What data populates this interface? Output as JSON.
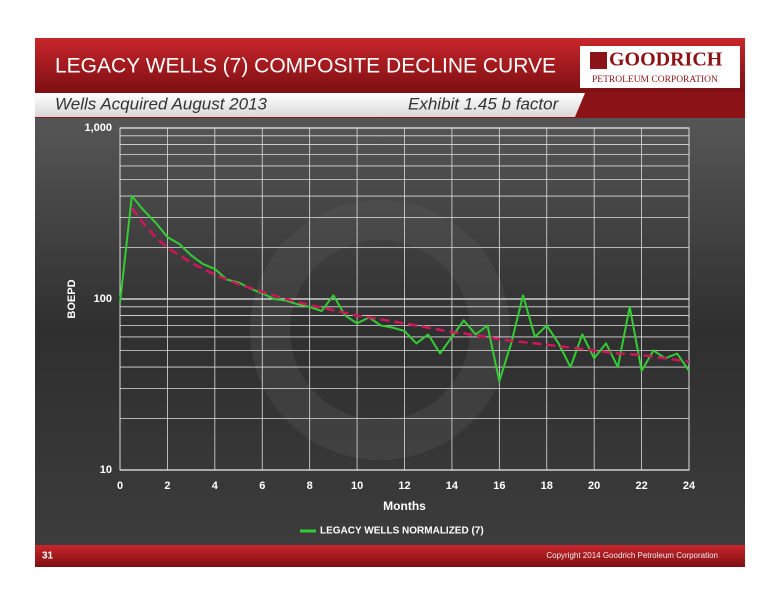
{
  "slide": {
    "title": "LEGACY WELLS (7) COMPOSITE DECLINE CURVE",
    "logo_name": "GOODRICH",
    "logo_sub": "PETROLEUM CORPORATION",
    "subtitle_left": "Wells Acquired August 2013",
    "subtitle_right": "Exhibit 1.45 b factor",
    "page_number": "31",
    "copyright": "Copyright 2014 Goodrich Petroleum Corporation"
  },
  "chart_data": {
    "type": "line",
    "x_label": "Months",
    "y_label": "BOEPD",
    "log_y": true,
    "grid": true,
    "xlim": [
      0,
      24
    ],
    "xticks": [
      0,
      2,
      4,
      6,
      8,
      10,
      12,
      14,
      16,
      18,
      20,
      22,
      24
    ],
    "ylim": [
      10,
      1000
    ],
    "yticks": [
      10,
      100,
      {
        "value": 1000,
        "label": "1,000"
      }
    ],
    "y_minor_grid": [
      20,
      30,
      40,
      50,
      60,
      70,
      80,
      90,
      200,
      300,
      400,
      500,
      600,
      700,
      800,
      900
    ],
    "x": [
      0,
      0.5,
      1,
      1.5,
      2,
      2.5,
      3,
      3.5,
      4,
      4.5,
      5,
      5.5,
      6,
      6.5,
      7,
      7.5,
      8,
      8.5,
      9,
      9.5,
      10,
      10.5,
      11,
      11.5,
      12,
      12.5,
      13,
      13.5,
      14,
      14.5,
      15,
      15.5,
      16,
      16.5,
      17,
      17.5,
      18,
      18.5,
      19,
      19.5,
      20,
      20.5,
      21,
      21.5,
      22,
      22.5,
      23,
      23.5,
      24
    ],
    "series": [
      {
        "name": "LEGACY WELLS NORMALIZED (7)",
        "color": "#33cc33",
        "values": [
          95,
          400,
          330,
          280,
          230,
          210,
          180,
          160,
          150,
          130,
          125,
          115,
          108,
          100,
          98,
          93,
          90,
          85,
          105,
          80,
          72,
          78,
          70,
          68,
          65,
          55,
          62,
          48,
          60,
          75,
          62,
          70,
          33,
          55,
          105,
          60,
          70,
          55,
          40,
          62,
          45,
          55,
          40,
          90,
          38,
          50,
          45,
          48,
          38
        ]
      },
      {
        "color": "#d0155a",
        "dashed": true,
        "values": [
          null,
          340,
          275,
          230,
          200,
          180,
          163,
          150,
          139,
          130,
          122,
          116,
          110,
          105,
          100,
          96,
          92,
          89,
          86,
          83,
          80,
          78,
          76,
          74,
          72,
          70,
          68,
          66,
          64,
          63,
          61,
          60,
          58,
          57,
          56,
          55,
          54,
          53,
          52,
          51,
          50,
          49,
          48,
          47.5,
          47,
          46,
          45,
          44,
          43
        ]
      }
    ]
  }
}
